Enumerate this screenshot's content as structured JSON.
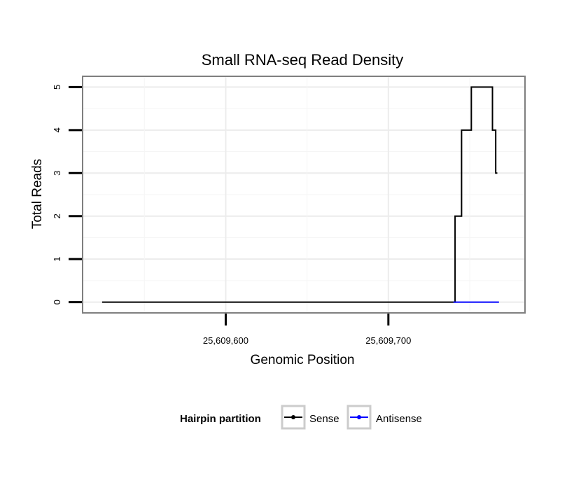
{
  "chart_data": {
    "type": "line",
    "title": "Small RNA-seq Read Density",
    "xlabel": "Genomic Position",
    "ylabel": "Total Reads",
    "xlim": [
      25609512,
      25609784
    ],
    "ylim": [
      -0.25,
      5.25
    ],
    "x_ticks": [
      25609600,
      25609700
    ],
    "x_tick_labels": [
      "25,609,600",
      "25,609,700"
    ],
    "y_ticks": [
      0,
      1,
      2,
      3,
      4,
      5
    ],
    "y_tick_labels": [
      "0",
      "1",
      "2",
      "3",
      "4",
      "5"
    ],
    "grid": true,
    "legend": {
      "title": "Hairpin partition",
      "position": "bottom"
    },
    "series": [
      {
        "name": "Sense",
        "color": "#000000",
        "step": true,
        "x": [
          25609524,
          25609740,
          25609741,
          25609743,
          25609745,
          25609748,
          25609751,
          25609762,
          25609764,
          25609766,
          25609767
        ],
        "values": [
          0,
          0,
          2,
          2,
          4,
          4,
          5,
          5,
          4,
          3,
          3
        ]
      },
      {
        "name": "Antisense",
        "color": "#0000ff",
        "step": true,
        "x": [
          25609740,
          25609768
        ],
        "values": [
          0,
          0
        ]
      }
    ]
  }
}
